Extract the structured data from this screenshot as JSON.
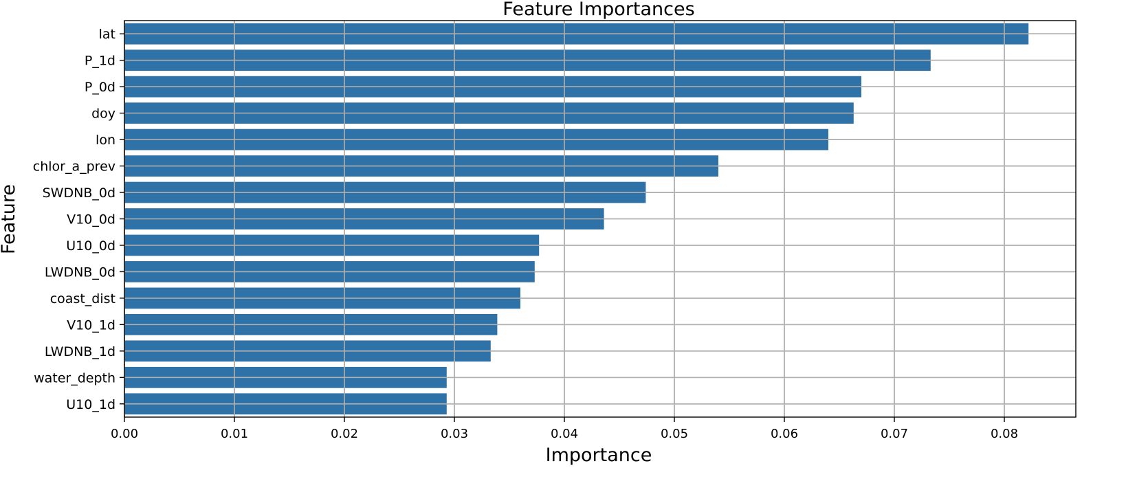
{
  "chart_data": {
    "type": "bar",
    "orientation": "horizontal",
    "title": "Feature Importances",
    "xlabel": "Importance",
    "ylabel": "Feature",
    "categories": [
      "lat",
      "P_1d",
      "P_0d",
      "doy",
      "lon",
      "chlor_a_prev",
      "SWDNB_0d",
      "V10_0d",
      "U10_0d",
      "LWDNB_0d",
      "coast_dist",
      "V10_1d",
      "LWDNB_1d",
      "water_depth",
      "U10_1d"
    ],
    "values": [
      0.0822,
      0.0733,
      0.067,
      0.0663,
      0.064,
      0.054,
      0.0474,
      0.0436,
      0.0377,
      0.0373,
      0.036,
      0.0339,
      0.0333,
      0.0293,
      0.0293
    ],
    "xlim": [
      0.0,
      0.0865
    ],
    "xticks": [
      "0.00",
      "0.01",
      "0.02",
      "0.03",
      "0.04",
      "0.05",
      "0.06",
      "0.07",
      "0.08"
    ],
    "grid": true,
    "bar_color": "#2f72a8"
  }
}
